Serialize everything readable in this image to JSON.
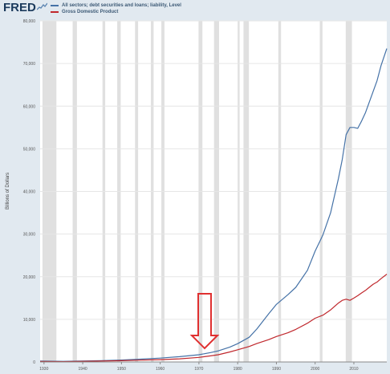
{
  "header": {
    "logo_text": "FRED"
  },
  "colors": {
    "background": "#e1e9f0",
    "plot_background": "#ffffff",
    "recession_band": "#e0e0e0",
    "series_debt": "#4572a7",
    "series_gdp": "#c0282d",
    "annotation_arrow": "#e03030"
  },
  "chart_data": {
    "type": "line",
    "title": "",
    "xlabel": "",
    "ylabel": "Billions of Dollars",
    "xlim": [
      1929,
      2018.5
    ],
    "ylim": [
      0,
      80000
    ],
    "grid": true,
    "legend_position": "top-left",
    "x_ticks": [
      1930,
      1940,
      1950,
      1960,
      1970,
      1980,
      1990,
      2000,
      2010
    ],
    "x_tick_labels": [
      "1930",
      "1940",
      "1950",
      "1960",
      "1970",
      "1980",
      "1990",
      "2000",
      "2010"
    ],
    "y_ticks": [
      0,
      10000,
      20000,
      30000,
      40000,
      50000,
      60000,
      70000,
      80000
    ],
    "y_tick_labels": [
      "0",
      "10,000",
      "20,000",
      "30,000",
      "40,000",
      "50,000",
      "60,000",
      "70,000",
      "80,000"
    ],
    "recessions": [
      [
        1929.6,
        1933.2
      ],
      [
        1937.4,
        1938.5
      ],
      [
        1945.1,
        1945.8
      ],
      [
        1948.9,
        1949.8
      ],
      [
        1953.5,
        1954.3
      ],
      [
        1957.6,
        1958.3
      ],
      [
        1960.3,
        1961.1
      ],
      [
        1969.9,
        1970.9
      ],
      [
        1973.9,
        1975.2
      ],
      [
        1980.0,
        1980.5
      ],
      [
        1981.5,
        1982.9
      ],
      [
        1990.5,
        1991.2
      ],
      [
        2001.2,
        2001.9
      ],
      [
        2007.9,
        2009.5
      ]
    ],
    "series": [
      {
        "name": "All sectors; debt securities and loans; liability, Level",
        "color": "#4572a7",
        "x": [
          1929,
          1935,
          1945,
          1950,
          1955,
          1960,
          1965,
          1970,
          1973,
          1975,
          1978,
          1980,
          1983,
          1985,
          1988,
          1990,
          1993,
          1995,
          1998,
          2000,
          2002,
          2004,
          2006,
          2007,
          2008,
          2009,
          2010,
          2011,
          2012,
          2013,
          2014,
          2015,
          2016,
          2017,
          2018.5
        ],
        "y": [
          200,
          150,
          300,
          450,
          650,
          900,
          1250,
          1700,
          2200,
          2600,
          3500,
          4300,
          5800,
          7800,
          11300,
          13500,
          15800,
          17500,
          21500,
          26000,
          29800,
          35000,
          43000,
          47500,
          53300,
          55000,
          55000,
          54800,
          56500,
          58500,
          61000,
          63500,
          66000,
          69500,
          73500
        ]
      },
      {
        "name": "Gross Domestic Product",
        "color": "#c0282d",
        "x": [
          1929,
          1935,
          1945,
          1950,
          1955,
          1960,
          1965,
          1970,
          1973,
          1975,
          1978,
          1980,
          1983,
          1985,
          1988,
          1990,
          1993,
          1995,
          1998,
          2000,
          2002,
          2004,
          2006,
          2007,
          2008,
          2009,
          2010,
          2011,
          2012,
          2013,
          2014,
          2015,
          2016,
          2017,
          2018.5
        ],
        "y": [
          104,
          73,
          228,
          300,
          426,
          543,
          743,
          1073,
          1425,
          1688,
          2357,
          2857,
          3634,
          4339,
          5236,
          5963,
          6858,
          7640,
          9089,
          10252,
          10977,
          12213,
          13815,
          14452,
          14713,
          14449,
          14992,
          15543,
          16197,
          16785,
          17527,
          18238,
          18745,
          19543,
          20600
        ]
      }
    ]
  }
}
